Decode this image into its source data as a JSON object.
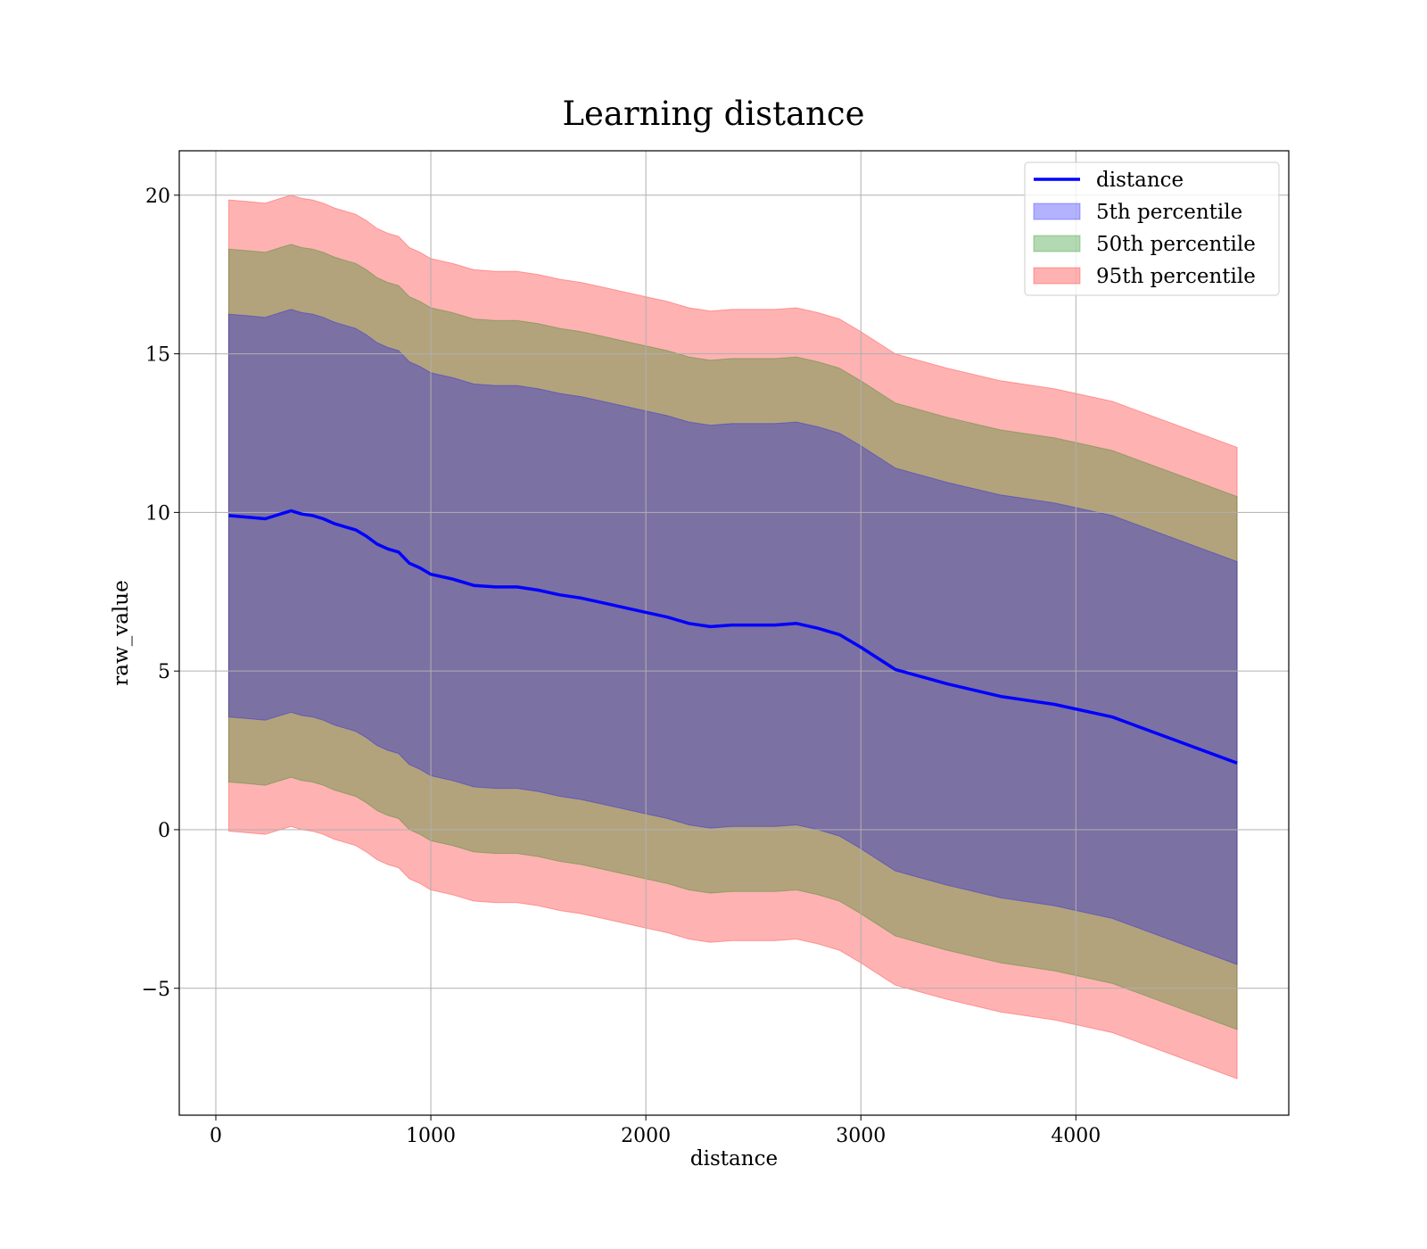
{
  "chart_data": {
    "type": "area",
    "title": "Learning distance",
    "xlabel": "distance",
    "ylabel": "raw_value",
    "xlim": [
      -170,
      4990
    ],
    "ylim": [
      -9.0,
      21.4
    ],
    "xticks": [
      0,
      1000,
      2000,
      3000,
      4000
    ],
    "xtick_labels": [
      "0",
      "1000",
      "2000",
      "3000",
      "4000"
    ],
    "yticks": [
      -5,
      0,
      5,
      10,
      15,
      20
    ],
    "ytick_labels": [
      "−5",
      "0",
      "5",
      "10",
      "15",
      "20"
    ],
    "grid": true,
    "legend_position": "top-right",
    "x": [
      60,
      150,
      230,
      300,
      350,
      400,
      450,
      500,
      550,
      600,
      650,
      700,
      750,
      800,
      850,
      900,
      950,
      1000,
      1100,
      1200,
      1300,
      1400,
      1500,
      1600,
      1700,
      1800,
      1900,
      2000,
      2100,
      2200,
      2300,
      2400,
      2500,
      2600,
      2700,
      2800,
      2900,
      3000,
      3160,
      3400,
      3650,
      3900,
      4170,
      4450,
      4750
    ],
    "series": [
      {
        "name": "distance",
        "kind": "line",
        "color": "#0000ff",
        "values": [
          9.9,
          9.85,
          9.8,
          9.95,
          10.05,
          9.95,
          9.9,
          9.8,
          9.65,
          9.55,
          9.45,
          9.25,
          9.0,
          8.85,
          8.75,
          8.4,
          8.25,
          8.05,
          7.9,
          7.7,
          7.65,
          7.65,
          7.55,
          7.4,
          7.3,
          7.15,
          7.0,
          6.85,
          6.7,
          6.5,
          6.4,
          6.45,
          6.45,
          6.45,
          6.5,
          6.35,
          6.15,
          5.75,
          5.05,
          4.6,
          4.2,
          3.95,
          3.55,
          2.85,
          2.1
        ]
      },
      {
        "name": "5th percentile",
        "kind": "band",
        "color": "#0000ff",
        "offset": 6.35
      },
      {
        "name": "50th percentile",
        "kind": "band",
        "color": "#008000",
        "offset": 8.4
      },
      {
        "name": "95th percentile",
        "kind": "band",
        "color": "#ff0000",
        "offset": 9.95
      }
    ]
  }
}
